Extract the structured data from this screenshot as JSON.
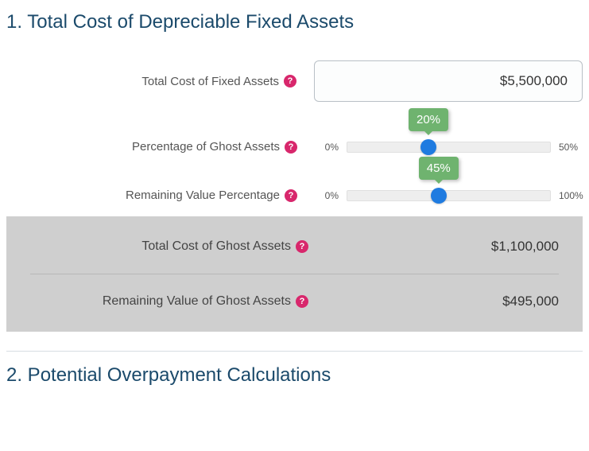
{
  "colors": {
    "heading": "#1b4a6b",
    "help_icon_bg": "#d8276c",
    "slider_thumb": "#1f7be0",
    "tooltip_bg": "#6fb36f",
    "results_bg": "#cfcfcf"
  },
  "section1": {
    "heading": "1. Total Cost of Depreciable Fixed Assets",
    "total_cost": {
      "label": "Total Cost of Fixed Assets",
      "value": "$5,500,000"
    },
    "ghost_pct": {
      "label": "Percentage of Ghost Assets",
      "min_label": "0%",
      "max_label": "50%",
      "min": 0,
      "max": 50,
      "value": 20,
      "tooltip": "20%"
    },
    "remaining_pct": {
      "label": "Remaining Value Percentage",
      "min_label": "0%",
      "max_label": "100%",
      "min": 0,
      "max": 100,
      "value": 45,
      "tooltip": "45%"
    },
    "results": {
      "ghost_cost_label": "Total Cost of Ghost Assets",
      "ghost_cost_value": "$1,100,000",
      "remaining_value_label": "Remaining Value of Ghost Assets",
      "remaining_value_value": "$495,000"
    }
  },
  "section2": {
    "heading": "2. Potential Overpayment Calculations"
  }
}
